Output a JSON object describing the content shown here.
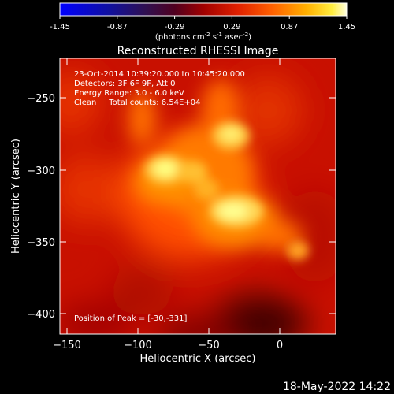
{
  "colorbar": {
    "tick_labels": [
      "-1.45",
      "-0.87",
      "-0.29",
      "0.29",
      "0.87",
      "1.45"
    ],
    "units_prefix": "(photons cm",
    "units_exp1": "-2",
    "units_mid": " s",
    "units_exp2": "-1",
    "units_mid2": " asec",
    "units_exp3": "-2",
    "units_suffix": ")",
    "colormap": "red-temperature (black-blue-purple-red-orange-yellow-white)"
  },
  "plot": {
    "title": "Reconstructed RHESSI Image",
    "xlabel": "Heliocentric X (arcsec)",
    "ylabel": "Heliocentric Y (arcsec)",
    "x_ticks": [
      "−150",
      "−100",
      "−50",
      "0"
    ],
    "y_ticks": [
      "−250",
      "−300",
      "−350",
      "−400"
    ],
    "xlim": [
      -155,
      40
    ],
    "ylim": [
      -420,
      -228
    ],
    "peak_position": [
      -30,
      -331
    ]
  },
  "annotations": {
    "line1": "23-Oct-2014 10:39:20.000 to 10:45:20.000",
    "line2": "Detectors: 3F 6F 9F, Att 0",
    "line3": "Energy Range: 3.0 - 6.0 keV",
    "line4": "Clean     Total counts: 6.54E+04",
    "peak": "Position of Peak = [-30,-331]"
  },
  "timestamp": "18-May-2022 14:22"
}
